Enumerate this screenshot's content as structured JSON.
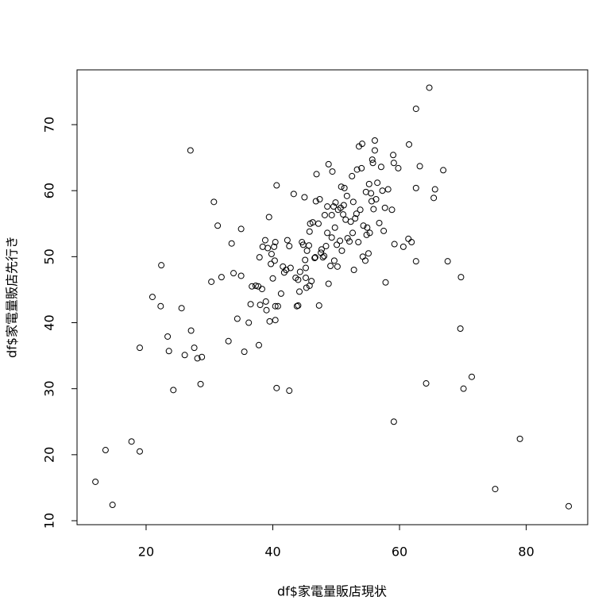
{
  "chart_data": {
    "type": "scatter",
    "x_label": "df$家電量販店現状",
    "y_label": "df$家電量販店先行き",
    "xlim": [
      9.1,
      89.7
    ],
    "ylim": [
      9.4,
      78.3
    ],
    "xticks": [
      20,
      40,
      60,
      80
    ],
    "yticks": [
      10,
      20,
      30,
      40,
      50,
      60,
      70
    ],
    "color": "#000000",
    "x": [
      12.0,
      13.6,
      14.7,
      17.7,
      19.0,
      19.0,
      21.0,
      22.3,
      22.4,
      23.4,
      23.6,
      24.3,
      25.6,
      26.1,
      27.0,
      27.1,
      27.6,
      28.1,
      28.8,
      28.6,
      30.3,
      30.7,
      31.3,
      31.9,
      33.0,
      33.5,
      33.8,
      34.4,
      35.0,
      35.0,
      35.5,
      36.2,
      36.5,
      36.7,
      37.3,
      37.7,
      37.8,
      37.9,
      38.0,
      38.3,
      38.4,
      38.8,
      38.9,
      39.0,
      39.2,
      39.4,
      39.5,
      39.7,
      39.8,
      40.0,
      40.2,
      40.3,
      40.4,
      40.4,
      40.4,
      40.6,
      40.6,
      40.8,
      41.3,
      41.6,
      41.8,
      42.1,
      42.3,
      42.6,
      42.6,
      42.8,
      43.3,
      43.6,
      43.8,
      44.0,
      44.0,
      44.2,
      44.3,
      44.6,
      44.8,
      45.0,
      45.1,
      45.2,
      45.2,
      45.3,
      45.4,
      45.7,
      45.8,
      45.8,
      45.9,
      46.1,
      46.3,
      46.6,
      46.7,
      46.8,
      46.9,
      47.2,
      47.3,
      47.4,
      47.6,
      47.7,
      47.9,
      48.1,
      48.2,
      48.4,
      48.6,
      48.6,
      48.8,
      48.8,
      49.1,
      49.3,
      49.3,
      49.4,
      49.6,
      49.7,
      49.8,
      49.9,
      50.1,
      50.2,
      50.3,
      50.6,
      50.7,
      50.8,
      50.9,
      51.1,
      51.2,
      51.3,
      51.5,
      51.7,
      51.8,
      52.1,
      52.3,
      52.5,
      52.6,
      52.7,
      52.8,
      53.0,
      53.2,
      53.3,
      53.5,
      53.6,
      53.8,
      54.0,
      54.1,
      54.2,
      54.3,
      54.6,
      54.7,
      54.8,
      54.9,
      55.1,
      55.2,
      55.3,
      55.5,
      55.6,
      55.7,
      55.8,
      55.9,
      56.1,
      56.1,
      56.3,
      56.5,
      56.8,
      57.1,
      57.3,
      57.5,
      57.7,
      57.8,
      58.2,
      58.8,
      59.0,
      59.1,
      59.2,
      59.1,
      59.8,
      60.6,
      61.4,
      61.5,
      61.9,
      62.6,
      62.6,
      62.6,
      63.2,
      64.2,
      64.7,
      65.4,
      65.6,
      66.9,
      67.6,
      69.7,
      69.6,
      70.1,
      71.4,
      75.1,
      79.0,
      86.7
    ],
    "y": [
      15.9,
      20.7,
      12.4,
      22.0,
      20.5,
      36.2,
      43.9,
      42.5,
      48.7,
      37.9,
      35.7,
      29.8,
      42.2,
      35.1,
      66.1,
      38.8,
      36.2,
      34.6,
      34.8,
      30.7,
      46.2,
      58.3,
      54.7,
      46.9,
      37.2,
      52.0,
      47.5,
      40.6,
      47.1,
      54.2,
      35.6,
      40.0,
      42.8,
      45.5,
      45.6,
      45.5,
      36.6,
      49.9,
      42.7,
      45.1,
      51.5,
      52.5,
      43.2,
      41.9,
      51.3,
      56.0,
      40.2,
      48.9,
      50.4,
      46.7,
      51.5,
      49.4,
      42.5,
      52.2,
      40.4,
      60.8,
      30.1,
      42.5,
      44.4,
      48.5,
      47.6,
      48.0,
      52.5,
      29.7,
      51.6,
      48.3,
      59.5,
      46.8,
      42.5,
      42.6,
      46.5,
      44.7,
      47.7,
      52.2,
      51.8,
      59.0,
      49.5,
      48.3,
      46.8,
      45.3,
      50.9,
      51.7,
      53.8,
      45.6,
      55.0,
      46.3,
      55.2,
      49.8,
      49.9,
      58.4,
      62.5,
      55.0,
      42.6,
      58.7,
      50.6,
      51.1,
      49.9,
      50.1,
      56.3,
      51.6,
      53.6,
      57.6,
      45.9,
      64.0,
      48.6,
      56.3,
      52.9,
      62.9,
      57.6,
      49.4,
      54.4,
      58.2,
      51.8,
      48.5,
      57.1,
      52.4,
      57.4,
      60.6,
      50.9,
      56.4,
      57.8,
      60.4,
      55.6,
      59.2,
      52.8,
      52.3,
      55.3,
      62.2,
      53.6,
      58.3,
      48.0,
      55.8,
      56.5,
      63.2,
      52.2,
      66.7,
      57.1,
      63.4,
      67.1,
      50.0,
      54.7,
      49.4,
      59.8,
      53.3,
      54.4,
      50.5,
      61.0,
      53.6,
      59.6,
      58.4,
      64.7,
      64.2,
      57.2,
      66.1,
      67.6,
      58.7,
      61.2,
      55.1,
      63.6,
      60.0,
      53.9,
      57.4,
      46.1,
      60.2,
      57.1,
      65.4,
      64.2,
      51.9,
      25.0,
      63.4,
      51.5,
      52.7,
      67.0,
      52.2,
      60.4,
      49.3,
      72.4,
      63.7,
      30.8,
      75.6,
      58.9,
      60.2,
      63.1,
      49.3,
      46.9,
      39.1,
      30.0,
      31.8,
      14.8,
      22.4,
      12.2
    ]
  }
}
